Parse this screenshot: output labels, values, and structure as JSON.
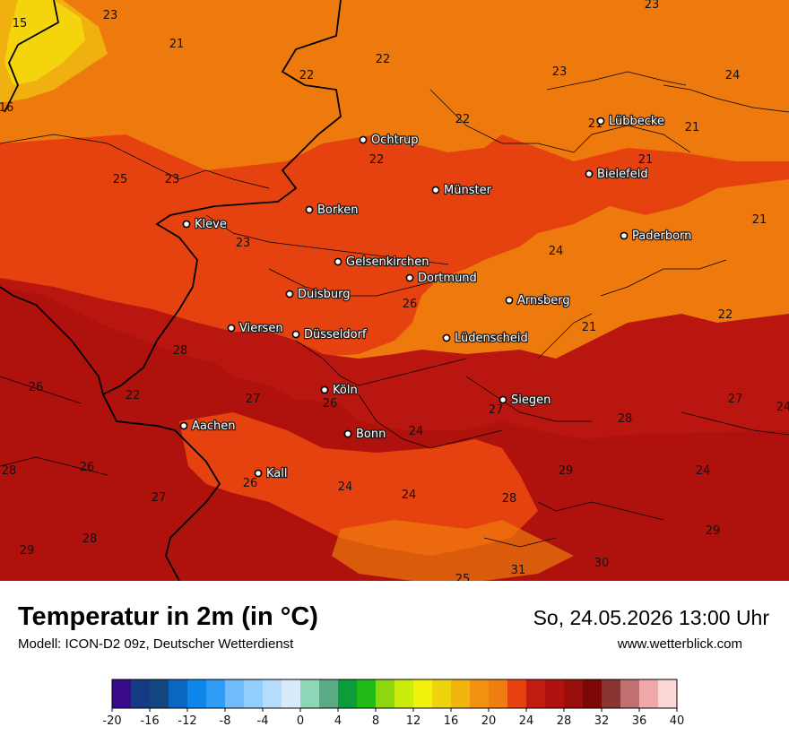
{
  "title": "Temperatur in 2m (in °C)",
  "model": "Modell: ICON-D2 09z, Deutscher Wetterdienst",
  "datetime": "So, 24.05.2026 13:00 Uhr",
  "website": "www.wetterblick.com",
  "cities": [
    {
      "name": "Ochtrup"
    },
    {
      "name": "Lübbecke"
    },
    {
      "name": "Bielefeld"
    },
    {
      "name": "Münster"
    },
    {
      "name": "Borken"
    },
    {
      "name": "Kleve"
    },
    {
      "name": "Paderborn"
    },
    {
      "name": "Gelsenkirchen"
    },
    {
      "name": "Dortmund"
    },
    {
      "name": "Duisburg"
    },
    {
      "name": "Arnsberg"
    },
    {
      "name": "Viersen"
    },
    {
      "name": "Düsseldorf"
    },
    {
      "name": "Lüdenscheid"
    },
    {
      "name": "Köln"
    },
    {
      "name": "Siegen"
    },
    {
      "name": "Aachen"
    },
    {
      "name": "Bonn"
    },
    {
      "name": "Kall"
    }
  ],
  "values": [
    "15",
    "23",
    "21",
    "22",
    "22",
    "23",
    "23",
    "24",
    "16",
    "22",
    "21",
    "21",
    "22",
    "21",
    "25",
    "23",
    "21",
    "23",
    "24",
    "26",
    "21",
    "22",
    "28",
    "26",
    "22",
    "27",
    "26",
    "27",
    "27",
    "24",
    "28",
    "24",
    "28",
    "26",
    "26",
    "24",
    "29",
    "24",
    "24",
    "27",
    "28",
    "29",
    "29",
    "28",
    "30",
    "31",
    "25"
  ],
  "legend": {
    "ticks": [
      "-20",
      "-16",
      "-12",
      "-8",
      "-4",
      "0",
      "4",
      "8",
      "12",
      "16",
      "20",
      "24",
      "28",
      "32",
      "36",
      "40"
    ],
    "colors": [
      "#3a0a8c",
      "#173a87",
      "#14467f",
      "#0b66bf",
      "#0b86ea",
      "#2f9cf5",
      "#72bbfa",
      "#93cdfb",
      "#b5dcfc",
      "#d7ebfd",
      "#8ed6b7",
      "#5aab84",
      "#0d9c3b",
      "#22bb15",
      "#8ed70f",
      "#c9ec0b",
      "#f2f20d",
      "#f0d30f",
      "#f2b510",
      "#f0920f",
      "#ef7d0f",
      "#e7410f",
      "#c11c12",
      "#b0130f",
      "#9a0f0c",
      "#7c0806",
      "#8a3434",
      "#c17070",
      "#f0a8a8",
      "#fcd7d7"
    ]
  }
}
